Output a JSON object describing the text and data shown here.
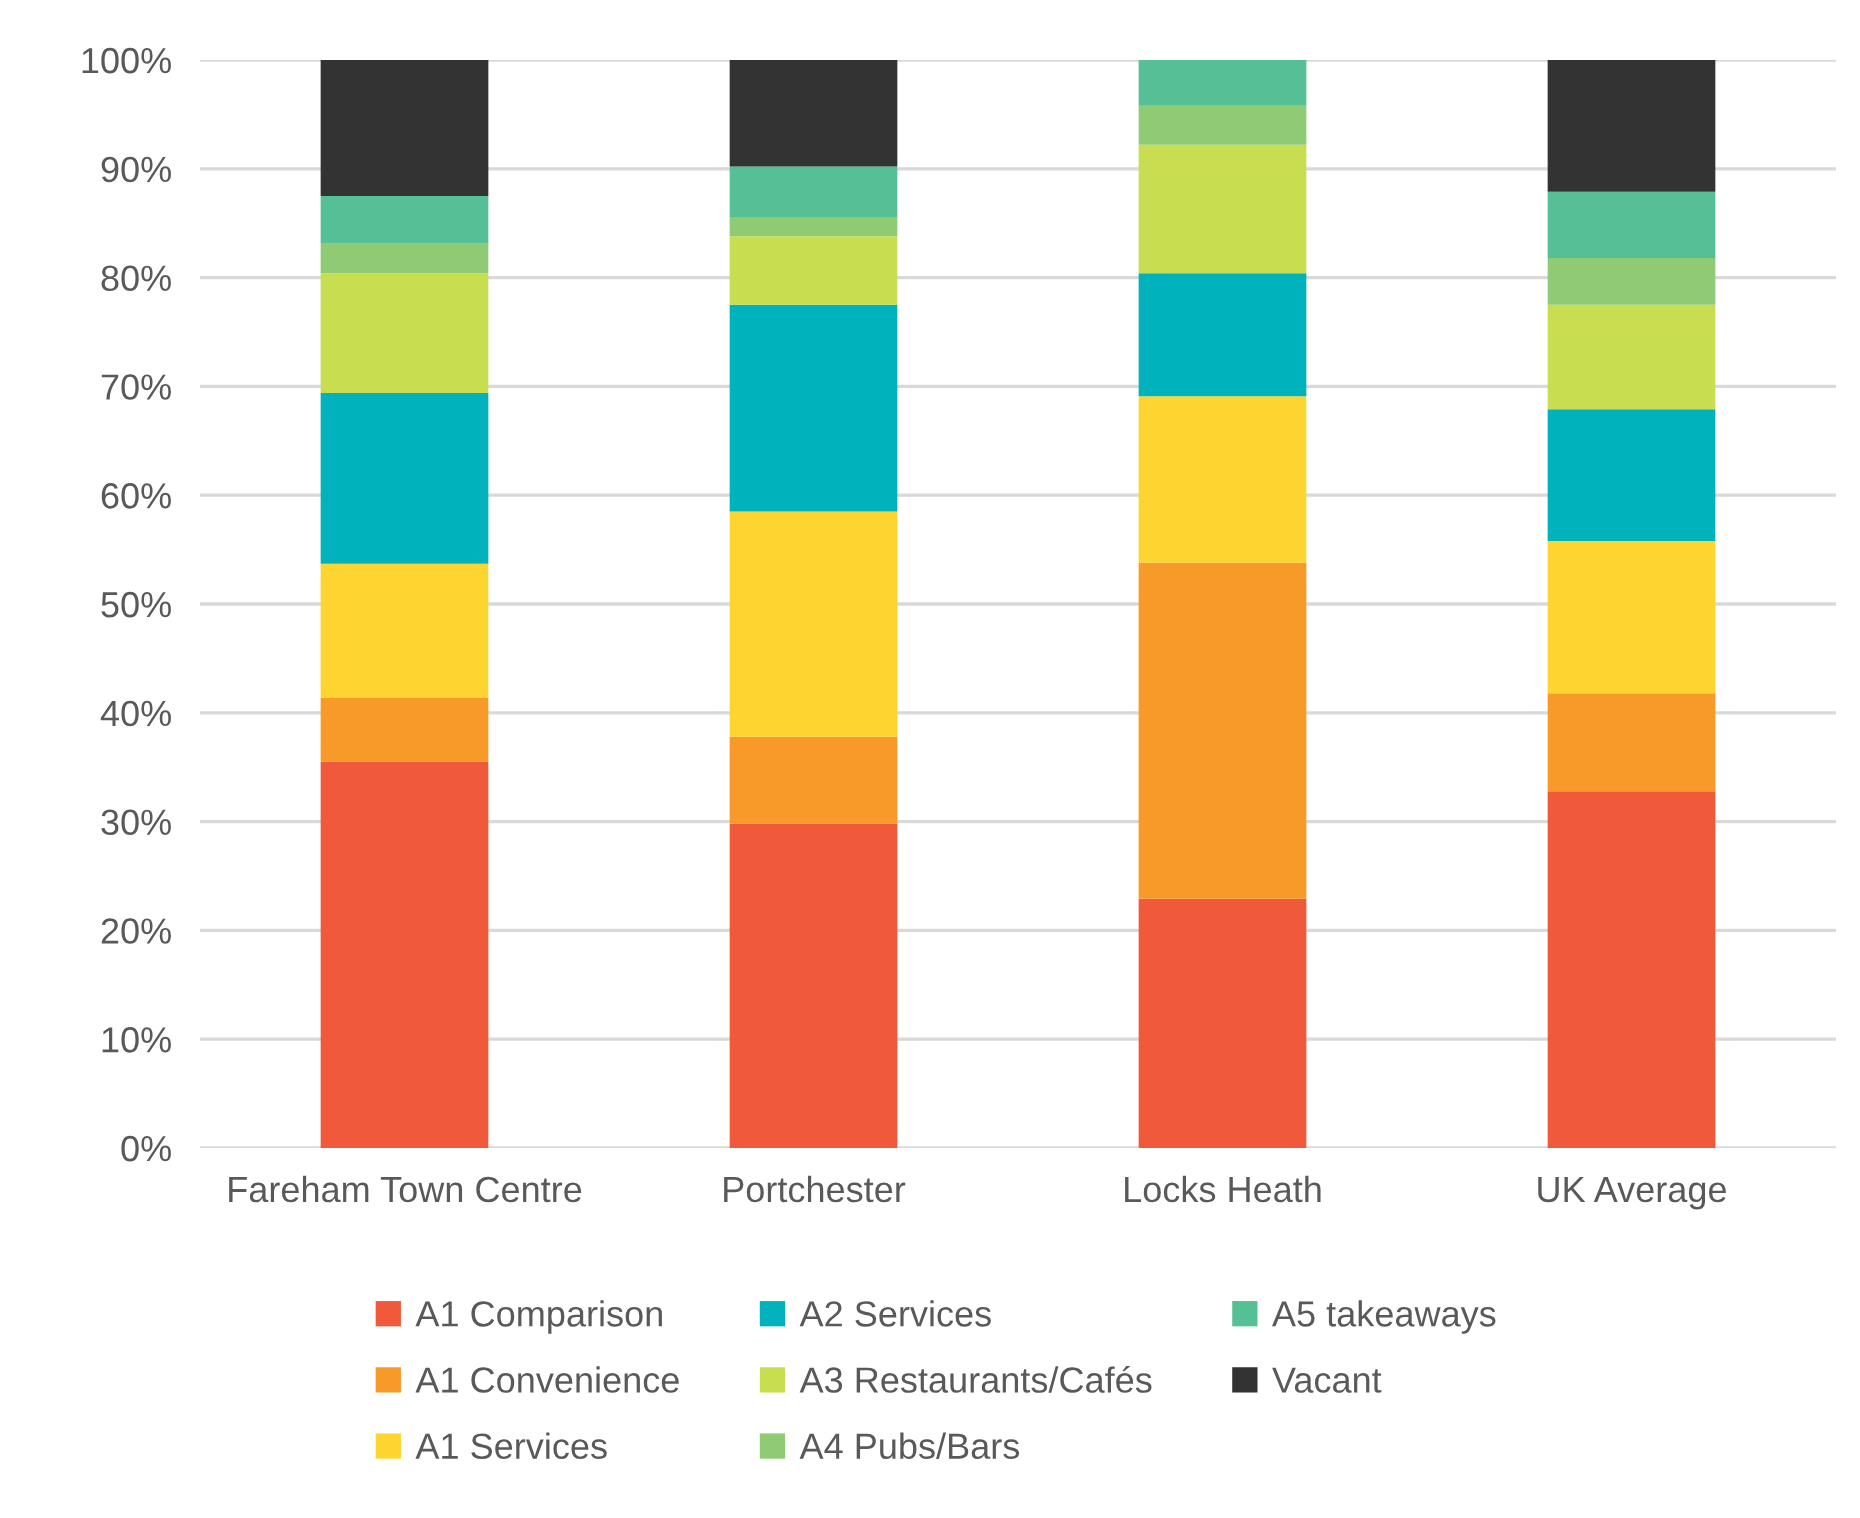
{
  "chart_data": {
    "type": "bar",
    "stacked": true,
    "categories": [
      "Fareham Town Centre",
      "Portchester",
      "Locks Heath",
      "UK Average"
    ],
    "series": [
      {
        "name": "A1 Comparison",
        "color": "#f05a3a",
        "values": [
          35.5,
          29.8,
          22.9,
          32.8
        ]
      },
      {
        "name": "A1 Convenience",
        "color": "#f89a2a",
        "values": [
          5.9,
          8.0,
          30.9,
          9.0
        ]
      },
      {
        "name": "A1 Services",
        "color": "#fed530",
        "values": [
          12.3,
          20.7,
          15.3,
          14.0
        ]
      },
      {
        "name": "A2 Services",
        "color": "#00b2bc",
        "values": [
          15.7,
          19.0,
          11.3,
          12.1
        ]
      },
      {
        "name": "A3 Restaurants/Cafés",
        "color": "#c9dd50",
        "values": [
          11.0,
          6.3,
          11.8,
          9.6
        ]
      },
      {
        "name": "A4 Pubs/Bars",
        "color": "#8fca74",
        "values": [
          2.7,
          1.7,
          3.6,
          4.3
        ]
      },
      {
        "name": "A5 takeaways",
        "color": "#55bf95",
        "values": [
          4.4,
          4.7,
          4.2,
          6.1
        ]
      },
      {
        "name": "Vacant",
        "color": "#333333",
        "values": [
          12.5,
          9.8,
          0,
          12.1
        ]
      }
    ],
    "ylim": [
      0,
      100
    ],
    "yticks": [
      {
        "value": 0,
        "label": "0%"
      },
      {
        "value": 10,
        "label": "10%"
      },
      {
        "value": 20,
        "label": "20%"
      },
      {
        "value": 30,
        "label": "30%"
      },
      {
        "value": 40,
        "label": "40%"
      },
      {
        "value": 50,
        "label": "50%"
      },
      {
        "value": 60,
        "label": "60%"
      },
      {
        "value": 70,
        "label": "70%"
      },
      {
        "value": 80,
        "label": "80%"
      },
      {
        "value": 90,
        "label": "90%"
      },
      {
        "value": 100,
        "label": "100%"
      }
    ],
    "grid": "y",
    "legend": "bottom"
  }
}
